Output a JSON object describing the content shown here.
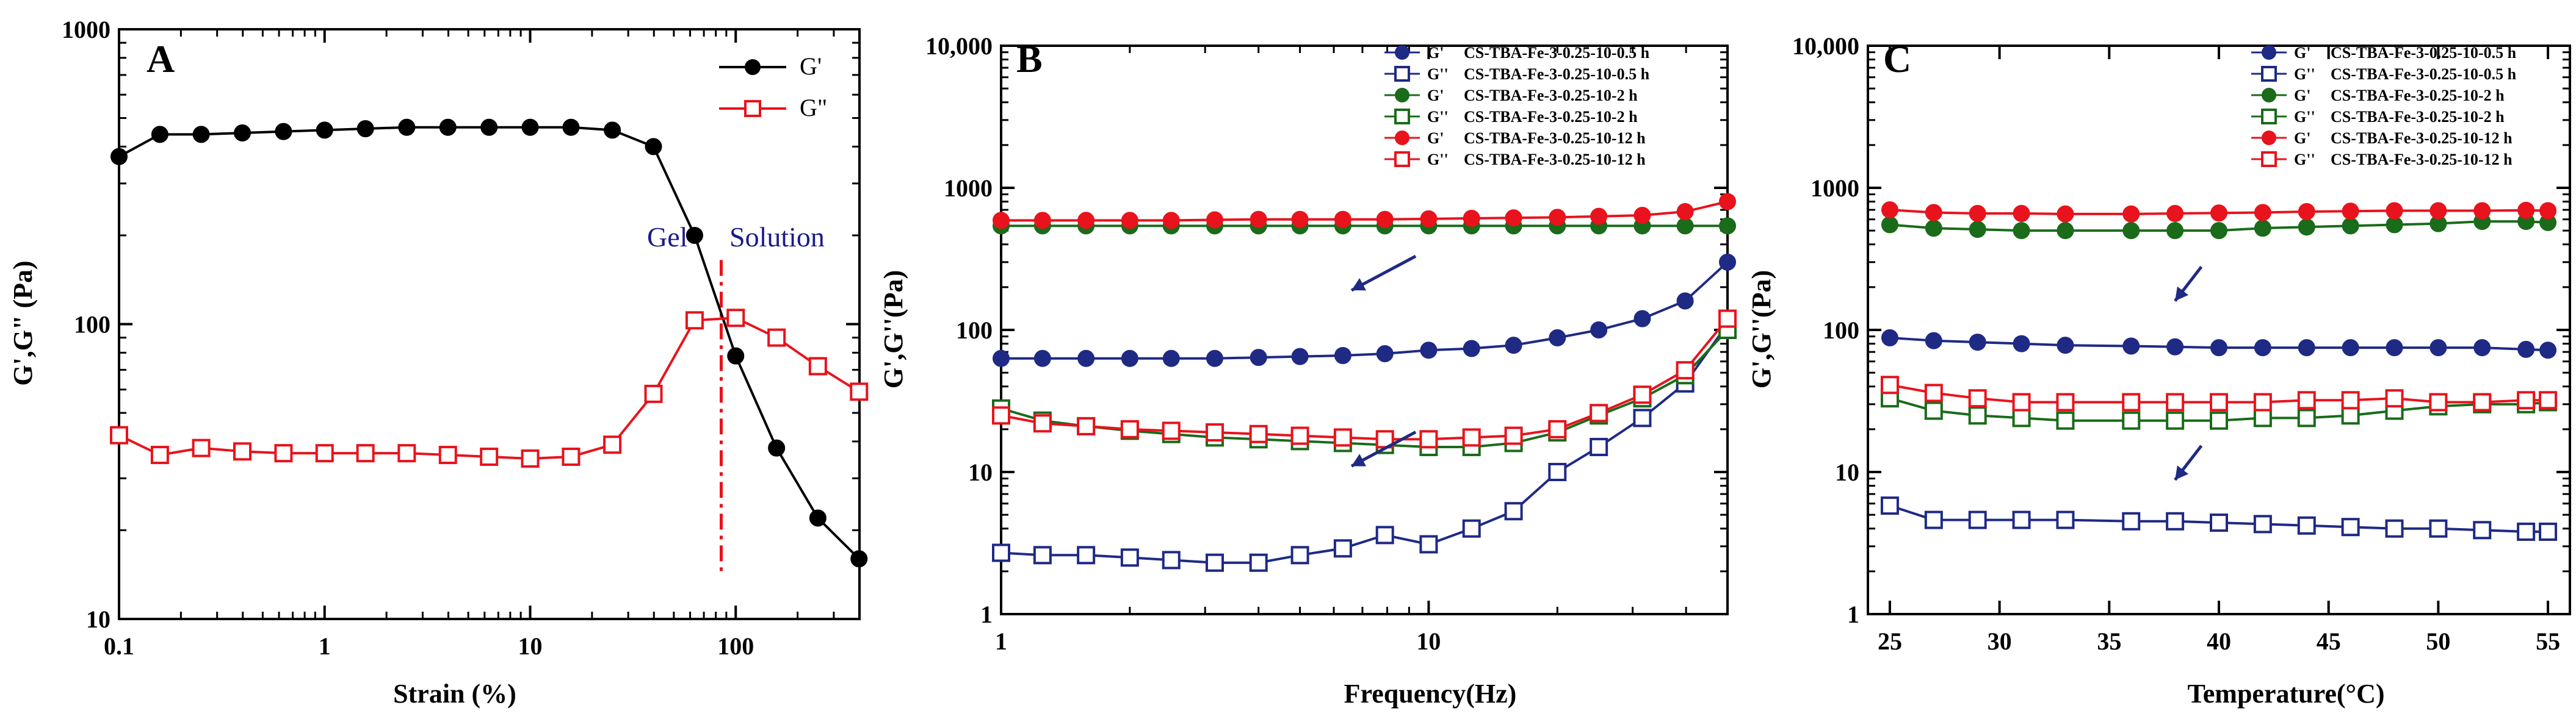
{
  "chart_data": [
    {
      "panel": "A",
      "type": "line",
      "xscale": "log",
      "yscale": "log",
      "xlabel": "Strain (%)",
      "ylabel": "G',G\" (Pa)",
      "xlim": [
        0.1,
        400
      ],
      "ylim": [
        10,
        1000
      ],
      "xticks": [
        0.1,
        1,
        10,
        100
      ],
      "xtick_labels": [
        "0.1",
        "1",
        "10",
        "100"
      ],
      "yticks": [
        10,
        100,
        1000
      ],
      "ytick_labels": [
        "10",
        "100",
        "1000"
      ],
      "legend_position": "top-right",
      "annotations": [
        {
          "text": "Gel",
          "x": 35,
          "y": 305,
          "color": "#1a1a8c"
        },
        {
          "text": "Solution",
          "x": 220,
          "y": 305,
          "color": "#1a1a8c"
        }
      ],
      "vline": {
        "x": 85,
        "color": "#e8131c"
      },
      "series": [
        {
          "name": "G'",
          "color": "#000000",
          "marker": "filled-circle",
          "x": [
            0.1,
            0.158,
            0.251,
            0.398,
            0.631,
            1,
            1.58,
            2.51,
            3.98,
            6.31,
            10,
            15.8,
            25.1,
            39.8,
            63.1,
            100,
            158,
            251,
            398
          ],
          "y": [
            370,
            440,
            440,
            445,
            450,
            455,
            460,
            465,
            465,
            465,
            465,
            465,
            455,
            400,
            200,
            78,
            38,
            22,
            16
          ]
        },
        {
          "name": "G\"",
          "color": "#e8131c",
          "marker": "open-square",
          "x": [
            0.1,
            0.158,
            0.251,
            0.398,
            0.631,
            1,
            1.58,
            2.51,
            3.98,
            6.31,
            10,
            15.8,
            25.1,
            39.8,
            63.1,
            100,
            158,
            251,
            398
          ],
          "y": [
            42,
            36,
            38,
            37,
            36.5,
            36.5,
            36.5,
            36.5,
            36,
            35.5,
            35,
            35.5,
            39,
            58,
            103,
            105,
            90,
            72,
            59
          ]
        }
      ]
    },
    {
      "panel": "B",
      "type": "line",
      "xscale": "log",
      "yscale": "log",
      "xlabel": "Frequency(Hz)",
      "ylabel": "G',G''(Pa)",
      "xlim": [
        1,
        50
      ],
      "ylim": [
        1,
        10000
      ],
      "xticks": [
        1,
        10
      ],
      "xtick_labels": [
        "1",
        "10"
      ],
      "yticks": [
        1,
        10,
        100,
        1000,
        10000
      ],
      "ytick_labels": [
        "1",
        "10",
        "100",
        "1000",
        "10,000"
      ],
      "legend_position": "top-right",
      "arrows": [
        {
          "x": 6.6,
          "y": 190,
          "dx": 0.5,
          "dy": 0.15
        },
        {
          "x": 6.6,
          "y": 11,
          "dx": 0.5,
          "dy": 0.15
        }
      ],
      "series": [
        {
          "name": "G'",
          "sample": "CS-TBA-Fe-3-0.25-10-0.5 h",
          "color": "#1f2a85",
          "marker": "filled-circle",
          "x": [
            1,
            1.25,
            1.58,
            2,
            2.5,
            3.16,
            4,
            5,
            6.3,
            7.9,
            10,
            12.6,
            15.8,
            20,
            25,
            31.6,
            39.8,
            50
          ],
          "y": [
            63,
            63,
            63,
            63,
            63,
            63,
            64,
            65,
            66,
            68,
            72,
            74,
            78,
            88,
            100,
            120,
            160,
            300
          ]
        },
        {
          "name": "G''",
          "sample": "CS-TBA-Fe-3-0.25-10-0.5 h",
          "color": "#1f2a85",
          "marker": "open-square",
          "x": [
            1,
            1.25,
            1.58,
            2,
            2.5,
            3.16,
            4,
            5,
            6.3,
            7.9,
            10,
            12.6,
            15.8,
            20,
            25,
            31.6,
            39.8,
            50
          ],
          "y": [
            2.7,
            2.6,
            2.6,
            2.5,
            2.4,
            2.3,
            2.3,
            2.6,
            2.9,
            3.6,
            3.1,
            4.0,
            5.3,
            10,
            15,
            24,
            42,
            110
          ]
        },
        {
          "name": "G'",
          "sample": "CS-TBA-Fe-3-0.25-10-2 h",
          "color": "#1a6b1a",
          "marker": "filled-circle",
          "x": [
            1,
            1.25,
            1.58,
            2,
            2.5,
            3.16,
            4,
            5,
            6.3,
            7.9,
            10,
            12.6,
            15.8,
            20,
            25,
            31.6,
            39.8,
            50
          ],
          "y": [
            540,
            540,
            540,
            540,
            540,
            540,
            540,
            540,
            540,
            540,
            540,
            540,
            540,
            540,
            540,
            540,
            540,
            540
          ]
        },
        {
          "name": "G''",
          "sample": "CS-TBA-Fe-3-0.25-10-2 h",
          "color": "#1a6b1a",
          "marker": "open-square",
          "x": [
            1,
            1.25,
            1.58,
            2,
            2.5,
            3.16,
            4,
            5,
            6.3,
            7.9,
            10,
            12.6,
            15.8,
            20,
            25,
            31.6,
            39.8,
            50
          ],
          "y": [
            28,
            23,
            21,
            19.5,
            18.5,
            17.5,
            17,
            16.5,
            16,
            15.5,
            15,
            15,
            16,
            19,
            25,
            33,
            48,
            100
          ]
        },
        {
          "name": "G'",
          "sample": "CS-TBA-Fe-3-0.25-10-12 h",
          "color": "#e8131c",
          "marker": "filled-circle",
          "x": [
            1,
            1.25,
            1.58,
            2,
            2.5,
            3.16,
            4,
            5,
            6.3,
            7.9,
            10,
            12.6,
            15.8,
            20,
            25,
            31.6,
            39.8,
            50
          ],
          "y": [
            590,
            590,
            590,
            590,
            590,
            595,
            600,
            600,
            600,
            600,
            605,
            610,
            615,
            620,
            630,
            640,
            680,
            800
          ]
        },
        {
          "name": "G''",
          "sample": "CS-TBA-Fe-3-0.25-10-12 h",
          "color": "#e8131c",
          "marker": "open-square",
          "x": [
            1,
            1.25,
            1.58,
            2,
            2.5,
            3.16,
            4,
            5,
            6.3,
            7.9,
            10,
            12.6,
            15.8,
            20,
            25,
            31.6,
            39.8,
            50
          ],
          "y": [
            25,
            22,
            21,
            20,
            19.5,
            19,
            18.5,
            18,
            17.5,
            17,
            17,
            17.5,
            18,
            20,
            26,
            35,
            52,
            120
          ]
        }
      ]
    },
    {
      "panel": "C",
      "type": "line",
      "xscale": "linear",
      "yscale": "log",
      "xlabel": "Temperature(°C)",
      "ylabel": "G',G''(Pa)",
      "xlim": [
        24,
        56
      ],
      "ylim": [
        1,
        10000
      ],
      "xticks": [
        25,
        30,
        35,
        40,
        45,
        50,
        55
      ],
      "xtick_labels": [
        "25",
        "30",
        "35",
        "40",
        "45",
        "50",
        "55"
      ],
      "yticks": [
        1,
        10,
        100,
        1000,
        10000
      ],
      "ytick_labels": [
        "1",
        "10",
        "100",
        "1000",
        "10,000"
      ],
      "legend_position": "top-right",
      "arrows": [
        {
          "x": 38,
          "y": 160,
          "dx": 1.2,
          "dy": 0.15
        },
        {
          "x": 38,
          "y": 8.8,
          "dx": 1.2,
          "dy": 0.15
        }
      ],
      "series": [
        {
          "name": "G'",
          "sample": "CS-TBA-Fe-3-0.25-10-0.5 h",
          "color": "#1f2a85",
          "marker": "filled-circle",
          "x": [
            25,
            27,
            29,
            31,
            33,
            36,
            38,
            40,
            42,
            44,
            46,
            48,
            50,
            52,
            54,
            55
          ],
          "y": [
            88,
            84,
            82,
            80,
            78,
            77,
            76,
            75,
            75,
            75,
            75,
            75,
            75,
            75,
            73,
            72
          ]
        },
        {
          "name": "G''",
          "sample": "CS-TBA-Fe-3-0.25-10-0.5 h",
          "color": "#1f2a85",
          "marker": "open-square",
          "x": [
            25,
            27,
            29,
            31,
            33,
            36,
            38,
            40,
            42,
            44,
            46,
            48,
            50,
            52,
            54,
            55
          ],
          "y": [
            5.8,
            4.6,
            4.6,
            4.6,
            4.6,
            4.5,
            4.5,
            4.4,
            4.3,
            4.2,
            4.1,
            4.0,
            4.0,
            3.9,
            3.8,
            3.8
          ]
        },
        {
          "name": "G'",
          "sample": "CS-TBA-Fe-3-0.25-10-2 h",
          "color": "#1a6b1a",
          "marker": "filled-circle",
          "x": [
            25,
            27,
            29,
            31,
            33,
            36,
            38,
            40,
            42,
            44,
            46,
            48,
            50,
            52,
            54,
            55
          ],
          "y": [
            550,
            520,
            510,
            500,
            500,
            500,
            500,
            500,
            520,
            530,
            540,
            550,
            560,
            580,
            580,
            570
          ]
        },
        {
          "name": "G''",
          "sample": "CS-TBA-Fe-3-0.25-10-2 h",
          "color": "#1a6b1a",
          "marker": "open-square",
          "x": [
            25,
            27,
            29,
            31,
            33,
            36,
            38,
            40,
            42,
            44,
            46,
            48,
            50,
            52,
            54,
            55
          ],
          "y": [
            33,
            27,
            25,
            24,
            23,
            23,
            23,
            23,
            24,
            24,
            25,
            27,
            29,
            30,
            30,
            31
          ]
        },
        {
          "name": "G'",
          "sample": "CS-TBA-Fe-3-0.25-10-12 h",
          "color": "#e8131c",
          "marker": "filled-circle",
          "x": [
            25,
            27,
            29,
            31,
            33,
            36,
            38,
            40,
            42,
            44,
            46,
            48,
            50,
            52,
            54,
            55
          ],
          "y": [
            700,
            670,
            660,
            660,
            655,
            655,
            660,
            665,
            670,
            680,
            685,
            690,
            690,
            690,
            695,
            690
          ]
        },
        {
          "name": "G''",
          "sample": "CS-TBA-Fe-3-0.25-10-12 h",
          "color": "#e8131c",
          "marker": "open-square",
          "x": [
            25,
            27,
            29,
            31,
            33,
            36,
            38,
            40,
            42,
            44,
            46,
            48,
            50,
            52,
            54,
            55
          ],
          "y": [
            41,
            36,
            33,
            31,
            31,
            31,
            31,
            31,
            31,
            32,
            32,
            33,
            31,
            31,
            32,
            32
          ]
        }
      ]
    }
  ]
}
